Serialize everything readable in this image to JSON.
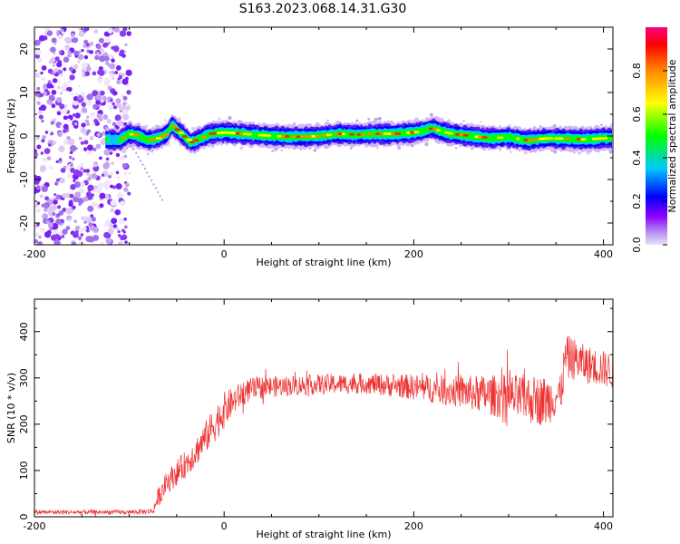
{
  "figure": {
    "title": "S163.2023.068.14.31.G30"
  },
  "chart_data": [
    {
      "type": "heatmap",
      "xlabel": "Height of straight line (km)",
      "ylabel": "Frequency (Hz)",
      "xlim": [
        -200,
        410
      ],
      "ylim": [
        -25,
        25
      ],
      "xticks": [
        -200,
        0,
        200,
        400
      ],
      "yticks": [
        -20,
        -10,
        0,
        10,
        20
      ],
      "colorbar": {
        "label": "Normalized spectral amplitude",
        "range": [
          0,
          1
        ],
        "ticks": [
          0.0,
          0.2,
          0.4,
          0.6,
          0.8
        ],
        "colors": [
          "#ece2f6",
          "#8f00ff",
          "#0000ff",
          "#00c8ff",
          "#00ff00",
          "#ffff00",
          "#ff8800",
          "#ff0000",
          "#ff0080"
        ]
      },
      "noise_region_x": [
        -200,
        -100
      ],
      "ridge": {
        "x": [
          -125,
          -110,
          -100,
          -90,
          -80,
          -70,
          -60,
          -55,
          -45,
          -35,
          -25,
          -15,
          0,
          20,
          50,
          80,
          100,
          120,
          140,
          160,
          180,
          200,
          210,
          220,
          230,
          240,
          260,
          280,
          300,
          320,
          340,
          360,
          380,
          400,
          410
        ],
        "frequency": [
          -0.8,
          -1.0,
          0.5,
          0.0,
          -1.0,
          -0.5,
          0.5,
          2.5,
          0.5,
          -1.5,
          -0.5,
          0.5,
          0.8,
          0.5,
          0.0,
          -0.2,
          0.0,
          0.5,
          0.3,
          0.5,
          0.5,
          0.8,
          1.2,
          1.8,
          1.0,
          0.5,
          0.0,
          -0.5,
          -0.3,
          -1.0,
          -0.5,
          -0.6,
          -0.8,
          -0.5,
          -0.5
        ]
      }
    },
    {
      "type": "line",
      "xlabel": "Height of straight line (km)",
      "ylabel": "SNR (10 * v/v)",
      "xlim": [
        -200,
        410
      ],
      "ylim": [
        0,
        470
      ],
      "xticks": [
        -200,
        0,
        200,
        400
      ],
      "yticks": [
        0,
        100,
        200,
        300,
        400
      ],
      "color": "#ee3333",
      "series": [
        {
          "x": [
            -200,
            -100,
            -75,
            -70,
            -60,
            -50,
            -40,
            -30,
            -20,
            -10,
            0,
            10,
            20,
            30,
            40,
            60,
            80,
            100,
            150,
            200,
            250,
            300,
            340,
            355,
            360,
            370,
            380,
            400,
            410
          ],
          "values": [
            10,
            10,
            12,
            40,
            75,
            95,
            115,
            140,
            170,
            200,
            230,
            250,
            268,
            276,
            280,
            282,
            284,
            286,
            288,
            280,
            270,
            258,
            250,
            265,
            345,
            340,
            330,
            320,
            315
          ],
          "spread": [
            5,
            5,
            6,
            20,
            25,
            28,
            30,
            32,
            35,
            40,
            40,
            30,
            28,
            25,
            25,
            22,
            22,
            22,
            22,
            28,
            35,
            50,
            55,
            40,
            50,
            45,
            42,
            40,
            40
          ]
        }
      ]
    }
  ]
}
